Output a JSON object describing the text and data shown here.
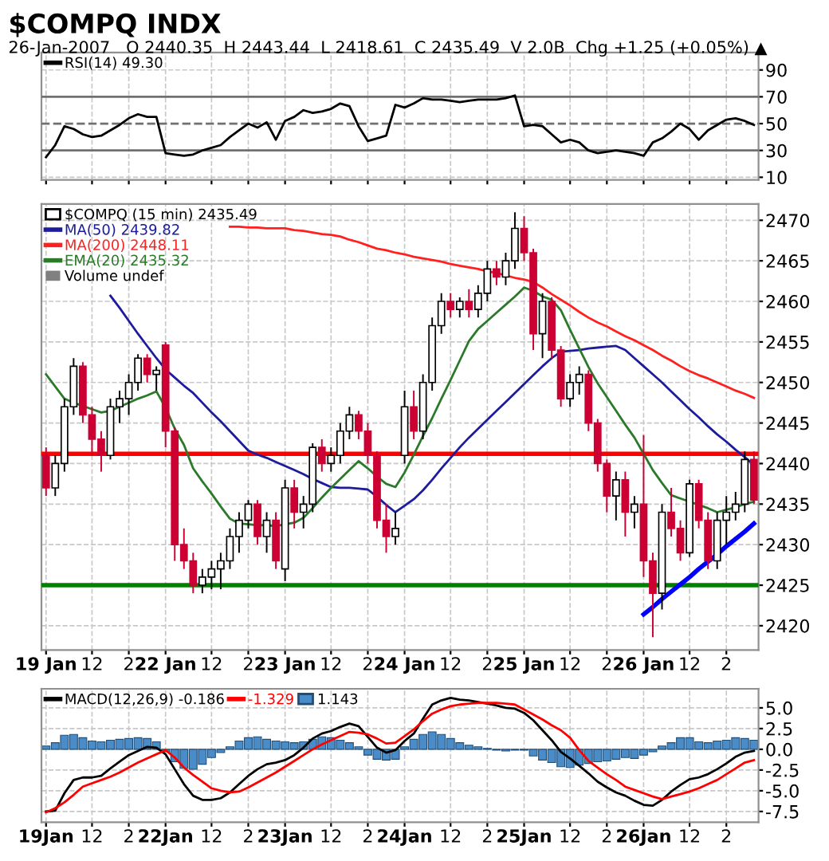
{
  "chart_data": [
    {
      "type": "line",
      "title": "$COMPQ INDX",
      "subtitle": "26-Jan-2007   O 2440.35  H 2443.44  L 2418.61  C 2435.49  V 2.0B  Chg +1.25 (+0.05%) ▲",
      "categories": [
        null,
        null,
        null,
        null,
        null,
        null,
        null,
        null,
        null,
        null,
        null,
        null,
        null,
        null,
        null,
        null,
        null,
        null,
        null,
        null,
        null,
        null,
        null,
        null,
        null,
        null,
        null,
        null,
        null,
        null,
        null,
        null,
        null,
        null,
        null,
        null,
        null,
        null,
        null,
        null,
        null,
        null,
        null,
        null,
        null,
        null,
        null,
        null,
        null,
        null,
        null,
        null,
        null,
        null,
        null,
        null,
        null,
        null,
        null,
        null,
        null,
        null,
        null,
        null,
        null,
        null,
        null,
        null,
        null,
        null,
        null,
        null,
        null,
        null,
        null,
        null,
        null,
        null
      ],
      "series": [
        {
          "name": "RSI(14) 49.30",
          "color": "#000000",
          "values": [
            25,
            34,
            48,
            46,
            42,
            40,
            41,
            45,
            49,
            54,
            57,
            55,
            55,
            28,
            27,
            26,
            27,
            30,
            32,
            34,
            40,
            45,
            50,
            47,
            51,
            38,
            52,
            55,
            60,
            58,
            59,
            61,
            65,
            63,
            48,
            37,
            39,
            41,
            64,
            62,
            65,
            69,
            68,
            68,
            67,
            66,
            67,
            68,
            68,
            68,
            69,
            71,
            48,
            49,
            48,
            42,
            36,
            38,
            36,
            30,
            28,
            29,
            30,
            29,
            28,
            26,
            36,
            39,
            44,
            50,
            46,
            38,
            45,
            49,
            53,
            54,
            52,
            49
          ]
        }
      ],
      "ylim": [
        8,
        103
      ],
      "yticks": [
        10,
        30,
        50,
        70,
        90
      ],
      "ref_lines": [
        {
          "axis": "y",
          "value": 70,
          "color": "#707070",
          "line_style": "solid"
        },
        {
          "axis": "y",
          "value": 50,
          "color": "#707070",
          "line_style": "dashed"
        },
        {
          "axis": "y",
          "value": 30,
          "color": "#707070",
          "line_style": "solid"
        }
      ],
      "grid": true,
      "legend": "top left",
      "tick_labels": "y"
    },
    {
      "type": "candlestick",
      "annotations": [
        "Volume undef"
      ],
      "categories": [
        "19 Jan",
        null,
        null,
        null,
        null,
        "12",
        null,
        null,
        null,
        "2",
        null,
        null,
        null,
        "22 Jan",
        null,
        null,
        null,
        null,
        "12",
        null,
        null,
        null,
        "2",
        null,
        null,
        null,
        "23 Jan",
        null,
        null,
        null,
        null,
        "12",
        null,
        null,
        null,
        "2",
        null,
        null,
        null,
        "24 Jan",
        null,
        null,
        null,
        null,
        "12",
        null,
        null,
        null,
        "2",
        null,
        null,
        null,
        "25 Jan",
        null,
        null,
        null,
        null,
        "12",
        null,
        null,
        null,
        "2",
        null,
        null,
        null,
        "26 Jan",
        null,
        null,
        null,
        null,
        "12",
        null,
        null,
        null,
        "2",
        null,
        null,
        null
      ],
      "series": [
        {
          "type": "candlestick",
          "name": "$COMPQ (15 min) 2435.49",
          "ohlc": [
            [
              2441,
              2442,
              2436,
              2437
            ],
            [
              2437,
              2441,
              2436,
              2440
            ],
            [
              2440,
              2448,
              2439,
              2447
            ],
            [
              2447,
              2453,
              2446,
              2452
            ],
            [
              2452,
              2452.5,
              2445,
              2446
            ],
            [
              2446,
              2447,
              2441,
              2443
            ],
            [
              2443,
              2444,
              2439,
              2441
            ],
            [
              2441,
              2448,
              2440.5,
              2447
            ],
            [
              2447,
              2449,
              2445,
              2448
            ],
            [
              2448,
              2451,
              2446,
              2450
            ],
            [
              2450,
              2453.5,
              2449,
              2453
            ],
            [
              2453,
              2453.5,
              2450,
              2451
            ],
            [
              2451,
              2452,
              2449,
              2451.5
            ],
            [
              2454.6,
              2455,
              2442,
              2444
            ],
            [
              2444,
              2444.5,
              2428,
              2430
            ],
            [
              2430,
              2432,
              2427,
              2428
            ],
            [
              2428,
              2429,
              2424,
              2425
            ],
            [
              2425,
              2427,
              2424,
              2426
            ],
            [
              2426,
              2428,
              2424.5,
              2427
            ],
            [
              2427,
              2429,
              2424.5,
              2428
            ],
            [
              2428,
              2432,
              2427,
              2431
            ],
            [
              2431,
              2434,
              2429,
              2433
            ],
            [
              2433,
              2435.5,
              2432,
              2435
            ],
            [
              2435,
              2435.5,
              2430,
              2431
            ],
            [
              2431,
              2434,
              2429,
              2433
            ],
            [
              2433,
              2434,
              2427,
              2428
            ],
            [
              2427,
              2438,
              2425.5,
              2437
            ],
            [
              2437,
              2438,
              2432,
              2434
            ],
            [
              2434,
              2436,
              2432,
              2435
            ],
            [
              2435,
              2442.5,
              2434,
              2442
            ],
            [
              2442,
              2443,
              2439,
              2440
            ],
            [
              2440,
              2442,
              2439,
              2441
            ],
            [
              2441,
              2445,
              2440,
              2444
            ],
            [
              2444,
              2447,
              2443,
              2446
            ],
            [
              2446,
              2446.5,
              2443,
              2444
            ],
            [
              2444,
              2445,
              2440,
              2441
            ],
            [
              2441,
              2441.5,
              2432,
              2433
            ],
            [
              2433,
              2435,
              2429,
              2431
            ],
            [
              2431,
              2434,
              2430,
              2432
            ],
            [
              2441,
              2449,
              2440,
              2447
            ],
            [
              2447,
              2449,
              2443,
              2444
            ],
            [
              2444,
              2451,
              2443,
              2450
            ],
            [
              2450,
              2458,
              2449,
              2457
            ],
            [
              2457,
              2461,
              2456,
              2460
            ],
            [
              2460,
              2461,
              2458,
              2459
            ],
            [
              2459,
              2460.5,
              2458,
              2460
            ],
            [
              2460,
              2461.5,
              2458,
              2459
            ],
            [
              2459,
              2462,
              2458,
              2461
            ],
            [
              2461,
              2465,
              2460,
              2464
            ],
            [
              2464,
              2465,
              2462,
              2463
            ],
            [
              2463,
              2466,
              2462,
              2465
            ],
            [
              2465,
              2471,
              2464,
              2469
            ],
            [
              2469,
              2470.5,
              2465,
              2466
            ],
            [
              2466,
              2466.5,
              2454,
              2456
            ],
            [
              2456,
              2461,
              2453,
              2460
            ],
            [
              2460,
              2460.5,
              2453,
              2454
            ],
            [
              2454,
              2454.5,
              2447,
              2448
            ],
            [
              2448,
              2451,
              2447,
              2450
            ],
            [
              2450,
              2452,
              2448.5,
              2451
            ],
            [
              2451,
              2451.5,
              2444,
              2445
            ],
            [
              2445,
              2445.5,
              2439,
              2440
            ],
            [
              2440,
              2440.5,
              2434,
              2436
            ],
            [
              2436,
              2439,
              2433,
              2438
            ],
            [
              2438,
              2439,
              2431,
              2434
            ],
            [
              2434,
              2436,
              2432,
              2435
            ],
            [
              2435,
              2443.5,
              2426,
              2428
            ],
            [
              2428,
              2429,
              2418.6,
              2424
            ],
            [
              2424,
              2435,
              2422,
              2434
            ],
            [
              2434,
              2437,
              2431,
              2432
            ],
            [
              2432,
              2433,
              2428,
              2429
            ],
            [
              2429,
              2438,
              2428.5,
              2437.5
            ],
            [
              2437.5,
              2438,
              2432,
              2433
            ],
            [
              2433,
              2434,
              2427,
              2428
            ],
            [
              2428,
              2434,
              2427,
              2433
            ],
            [
              2433,
              2436,
              2430,
              2434
            ],
            [
              2434,
              2436.5,
              2433,
              2435
            ],
            [
              2435,
              2441.5,
              2434,
              2440.5
            ],
            [
              2440.5,
              2441.5,
              2435,
              2435.5
            ]
          ]
        },
        {
          "type": "line",
          "name": "MA(50) 2439.82",
          "color": "#1c1c9c",
          "values": [
            null,
            null,
            null,
            null,
            null,
            null,
            null,
            2460.7,
            2459.2,
            2457.6,
            2456,
            2454.5,
            2453,
            2451.6,
            2450.6,
            2449.6,
            2448.7,
            2447.5,
            2446.3,
            2445.2,
            2444,
            2442.8,
            2441.6,
            2441.1,
            2440.7,
            2440.2,
            2439.7,
            2439.2,
            2438.7,
            2438.1,
            2437.6,
            2437.1,
            2437,
            2437,
            2436.9,
            2436.8,
            2435.9,
            2434.9,
            2434,
            2434.8,
            2435.6,
            2436.7,
            2438,
            2439.4,
            2440.7,
            2442,
            2443.2,
            2444.3,
            2445.4,
            2446.5,
            2447.6,
            2448.7,
            2449.8,
            2450.9,
            2452,
            2453,
            2453.8,
            2453.9,
            2454,
            2454.2,
            2454.3,
            2454.4,
            2454.5,
            2454,
            2453,
            2452,
            2451,
            2450,
            2448.9,
            2447.8,
            2446.7,
            2445.7,
            2444.6,
            2443.6,
            2442.7,
            2441.7,
            2440.8,
            2439.8
          ]
        },
        {
          "type": "line",
          "name": "MA(200) 2448.11",
          "color": "#ff2020",
          "values": [
            null,
            null,
            null,
            null,
            null,
            null,
            null,
            null,
            null,
            null,
            null,
            null,
            null,
            null,
            null,
            null,
            null,
            null,
            null,
            null,
            2469.2,
            2469.2,
            2469.1,
            2469.1,
            2469,
            2469,
            2469,
            2468.8,
            2468.7,
            2468.5,
            2468.3,
            2468.2,
            2468,
            2467.6,
            2467.3,
            2466.9,
            2466.5,
            2466.3,
            2466,
            2465.8,
            2465.5,
            2465.3,
            2465.1,
            2464.9,
            2464.6,
            2464.4,
            2464.2,
            2464,
            2463.7,
            2463.5,
            2463.2,
            2462.9,
            2462.7,
            2462.4,
            2461.7,
            2460.9,
            2460.2,
            2459.5,
            2458.7,
            2458,
            2457.4,
            2456.9,
            2456.3,
            2455.7,
            2455.2,
            2454.6,
            2454,
            2453.3,
            2452.7,
            2452,
            2451.4,
            2450.9,
            2450.5,
            2450,
            2449.5,
            2449,
            2448.6,
            2448.1
          ]
        },
        {
          "type": "line",
          "name": "EMA(20) 2435.32",
          "color": "#2a7a2a",
          "values": [
            2451,
            2449.5,
            2448,
            2447.5,
            2447.1,
            2446.7,
            2446.3,
            2446.5,
            2447,
            2447.5,
            2448,
            2448.4,
            2448.9,
            2446.9,
            2444.3,
            2442.3,
            2439.4,
            2437.8,
            2436.3,
            2434.7,
            2433.2,
            2432.6,
            2432.5,
            2432.4,
            2432.4,
            2432.3,
            2432.5,
            2432.7,
            2433.3,
            2434.5,
            2435.8,
            2437,
            2438.1,
            2439.2,
            2440.3,
            2439.4,
            2438.4,
            2437.5,
            2437.1,
            2438.9,
            2441.1,
            2443.4,
            2445.6,
            2448,
            2450.3,
            2452.7,
            2455.1,
            2456.6,
            2457.6,
            2458.6,
            2459.6,
            2460.6,
            2461.7,
            2461.3,
            2460.6,
            2460.2,
            2458.9,
            2456.5,
            2454.2,
            2451.9,
            2449.9,
            2448.2,
            2446.5,
            2444.8,
            2443.2,
            2441.2,
            2439.2,
            2437.6,
            2436.1,
            2435.7,
            2435.3,
            2434.9,
            2434.5,
            2434,
            2434.3,
            2434.6,
            2435,
            2435.3
          ]
        },
        {
          "type": "line",
          "color": "#0000ff",
          "values": [
            null,
            null,
            null,
            null,
            null,
            null,
            null,
            null,
            null,
            null,
            null,
            null,
            null,
            null,
            null,
            null,
            null,
            null,
            null,
            null,
            null,
            null,
            null,
            null,
            null,
            null,
            null,
            null,
            null,
            null,
            null,
            null,
            null,
            null,
            null,
            null,
            null,
            null,
            null,
            null,
            null,
            null,
            null,
            null,
            null,
            null,
            null,
            null,
            null,
            null,
            null,
            null,
            null,
            null,
            null,
            null,
            null,
            null,
            null,
            null,
            null,
            null,
            null,
            null,
            null,
            2421.4,
            2422.3,
            2423.3,
            2424.2,
            2425.1,
            2426,
            2427,
            2427.9,
            2428.8,
            2429.8,
            2430.7,
            2431.6,
            2432.6
          ]
        }
      ],
      "ylim": [
        2417,
        2472
      ],
      "yticks": [
        2420,
        2425,
        2430,
        2435,
        2440,
        2445,
        2450,
        2455,
        2460,
        2465,
        2470
      ],
      "ref_lines": [
        {
          "axis": "y",
          "value": 2441.2,
          "color": "#ff0000",
          "line_style": "solid"
        },
        {
          "axis": "y",
          "value": 2425,
          "color": "#008000",
          "line_style": "solid"
        }
      ],
      "grid": true,
      "legend": "top left"
    },
    {
      "type": "line",
      "categories": [
        "19Jan",
        null,
        null,
        null,
        null,
        "12",
        null,
        null,
        null,
        "2",
        null,
        null,
        null,
        "22Jan",
        null,
        null,
        null,
        null,
        "12",
        null,
        null,
        null,
        "2",
        null,
        null,
        null,
        "23Jan",
        null,
        null,
        null,
        null,
        "12",
        null,
        null,
        null,
        "2",
        null,
        null,
        null,
        "24Jan",
        null,
        null,
        null,
        null,
        "12",
        null,
        null,
        null,
        "2",
        null,
        null,
        null,
        "25Jan",
        null,
        null,
        null,
        null,
        "12",
        null,
        null,
        null,
        "2",
        null,
        null,
        null,
        "26Jan",
        null,
        null,
        null,
        null,
        "12",
        null,
        null,
        null,
        "2",
        null,
        null,
        null
      ],
      "series": [
        {
          "type": "line",
          "name": "MACD(12,26,9) -0.186",
          "color": "#000000",
          "values": [
            -7.5,
            -7.4,
            -5.3,
            -3.7,
            -3.4,
            -3.4,
            -3.2,
            -2.3,
            -1.5,
            -0.7,
            -0.2,
            0.3,
            0.2,
            -0.6,
            -2.4,
            -4.2,
            -5.6,
            -6.1,
            -6.1,
            -5.9,
            -5.2,
            -4.2,
            -3.2,
            -2.4,
            -1.8,
            -1.6,
            -1.3,
            -0.7,
            0.2,
            1.3,
            1.9,
            2.2,
            2.7,
            3.1,
            2.8,
            1.5,
            0.2,
            -0.4,
            -0.1,
            1.0,
            1.9,
            3.7,
            5.4,
            5.9,
            6.2,
            6.0,
            5.9,
            5.7,
            5.5,
            5.3,
            5.0,
            4.9,
            4.4,
            3.5,
            2.3,
            1.1,
            -0.3,
            -1.1,
            -2.0,
            -2.9,
            -3.9,
            -4.6,
            -5.2,
            -5.6,
            -6.2,
            -6.7,
            -6.8,
            -6.1,
            -5.1,
            -4.3,
            -3.6,
            -3.4,
            -3.0,
            -2.4,
            -1.7,
            -0.9,
            -0.4,
            -0.2
          ]
        },
        {
          "type": "line",
          "name": "-1.329",
          "color": "#ff0000",
          "values": [
            -7.6,
            -7.1,
            -6.4,
            -5.5,
            -4.5,
            -4.1,
            -3.7,
            -3.3,
            -2.8,
            -2.2,
            -1.6,
            -1.1,
            -0.6,
            -0.1,
            -1.0,
            -2.2,
            -3.1,
            -3.9,
            -4.7,
            -5.0,
            -5.2,
            -5.1,
            -4.6,
            -4.0,
            -3.4,
            -2.8,
            -2.1,
            -1.4,
            -0.7,
            0.0,
            0.6,
            1.1,
            1.6,
            2.1,
            2.0,
            1.8,
            1.3,
            0.7,
            0.8,
            1.6,
            2.4,
            3.4,
            4.3,
            4.8,
            5.2,
            5.4,
            5.5,
            5.6,
            5.6,
            5.6,
            5.5,
            5.4,
            4.8,
            4.2,
            3.6,
            2.9,
            2.3,
            1.4,
            -0.1,
            -1.4,
            -2.2,
            -3.0,
            -3.7,
            -4.5,
            -4.9,
            -5.3,
            -5.7,
            -6.0,
            -5.7,
            -5.4,
            -5.1,
            -4.7,
            -4.2,
            -3.7,
            -3.0,
            -2.3,
            -1.6,
            -1.3
          ]
        },
        {
          "type": "bar",
          "name": "1.143",
          "color": "#4a8cc8",
          "values": [
            0.4,
            0.8,
            1.7,
            1.8,
            1.4,
            1.0,
            0.9,
            1.1,
            1.2,
            1.3,
            1.4,
            1.3,
            0.9,
            -0.3,
            -1.5,
            -2.3,
            -2.4,
            -1.8,
            -1.0,
            -0.4,
            0.3,
            1.0,
            1.4,
            1.5,
            1.2,
            1.0,
            0.9,
            0.8,
            0.9,
            1.2,
            1.5,
            1.4,
            1.1,
            0.8,
            0.3,
            -0.7,
            -1.2,
            -1.3,
            -1.2,
            0.3,
            1.2,
            1.8,
            2.1,
            1.8,
            1.3,
            0.8,
            0.5,
            0.3,
            0.1,
            -0.1,
            -0.2,
            -0.1,
            -0.1,
            -0.8,
            -1.3,
            -1.6,
            -2.1,
            -2.2,
            -1.9,
            -1.7,
            -1.5,
            -1.4,
            -1.2,
            -1.0,
            -1.1,
            -0.7,
            -0.3,
            0.4,
            0.8,
            1.4,
            1.4,
            0.9,
            0.8,
            1.0,
            1.1,
            1.4,
            1.3,
            1.1
          ]
        }
      ],
      "ylim": [
        -8.8,
        7.3
      ],
      "yticks": [
        {
          "value": 5,
          "label": "5.0"
        },
        {
          "value": 2.5,
          "label": "2.5"
        },
        {
          "value": 0,
          "label": "0.0"
        },
        {
          "value": -2.5,
          "label": "-2.5"
        },
        {
          "value": -5,
          "label": "-5.0"
        },
        {
          "value": -7.5,
          "label": "-7.5"
        }
      ],
      "grid": true,
      "legend": "top left"
    }
  ]
}
